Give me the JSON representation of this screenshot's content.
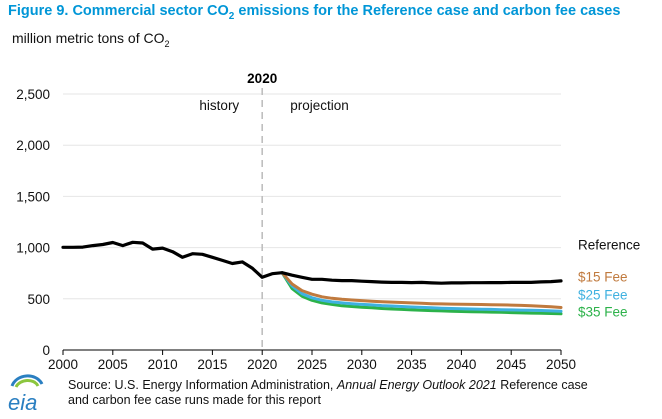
{
  "figure": {
    "title_prefix": "Figure 9. Commercial sector CO",
    "title_sub": "2",
    "title_suffix": " emissions for the Reference case and carbon fee cases",
    "y_unit_prefix": "million metric tons of CO",
    "y_unit_sub": "2"
  },
  "source": {
    "line1_prefix": "Source: U.S. Energy Information Administration, ",
    "line1_italic": "Annual Energy Outlook 2021",
    "line1_suffix": " Reference case",
    "line2": "and carbon fee case runs made for this report"
  },
  "logo": {
    "text": "eia"
  },
  "colors": {
    "reference": "#000000",
    "fee15": "#c07a3e",
    "fee25": "#3fb1e0",
    "fee35": "#2cb24a",
    "title": "#0096d7",
    "divider": "#bfbfbf"
  },
  "chart_data": {
    "type": "line",
    "xlim": [
      2000,
      2050
    ],
    "ylim": [
      0,
      2500
    ],
    "xticks": [
      2000,
      2005,
      2010,
      2015,
      2020,
      2025,
      2030,
      2035,
      2040,
      2045,
      2050
    ],
    "yticks": [
      0,
      500,
      1000,
      1500,
      2000,
      2500
    ],
    "ytick_labels": [
      "0",
      "500",
      "1,000",
      "1,500",
      "2,000",
      "2,500"
    ],
    "divider": {
      "x": 2020,
      "label": "2020",
      "left_label": "history",
      "right_label": "projection"
    },
    "series": [
      {
        "name": "Reference",
        "color_key": "reference",
        "x": [
          2000,
          2001,
          2002,
          2003,
          2004,
          2005,
          2006,
          2007,
          2008,
          2009,
          2010,
          2011,
          2012,
          2013,
          2014,
          2015,
          2016,
          2017,
          2018,
          2019,
          2020,
          2021,
          2022,
          2023,
          2024,
          2025,
          2026,
          2027,
          2028,
          2029,
          2030,
          2031,
          2032,
          2033,
          2034,
          2035,
          2036,
          2037,
          2038,
          2039,
          2040,
          2041,
          2042,
          2043,
          2044,
          2045,
          2046,
          2047,
          2048,
          2049,
          2050
        ],
        "y": [
          1003,
          1003,
          1005,
          1020,
          1030,
          1050,
          1020,
          1052,
          1045,
          985,
          995,
          960,
          905,
          940,
          935,
          905,
          875,
          845,
          860,
          800,
          710,
          745,
          755,
          730,
          710,
          690,
          690,
          682,
          678,
          678,
          672,
          668,
          663,
          660,
          660,
          658,
          660,
          655,
          652,
          655,
          655,
          657,
          657,
          658,
          658,
          660,
          660,
          660,
          665,
          668,
          675
        ]
      },
      {
        "name": "$15 Fee",
        "color_key": "fee15",
        "x": [
          2022,
          2023,
          2024,
          2025,
          2026,
          2027,
          2028,
          2029,
          2030,
          2031,
          2032,
          2033,
          2034,
          2035,
          2036,
          2037,
          2038,
          2039,
          2040,
          2041,
          2042,
          2043,
          2044,
          2045,
          2046,
          2047,
          2048,
          2049,
          2050
        ],
        "y": [
          755,
          645,
          580,
          545,
          520,
          505,
          495,
          488,
          482,
          477,
          472,
          468,
          464,
          460,
          456,
          452,
          450,
          448,
          447,
          445,
          444,
          442,
          440,
          438,
          436,
          432,
          428,
          422,
          415
        ]
      },
      {
        "name": "$25 Fee",
        "color_key": "fee25",
        "x": [
          2022,
          2023,
          2024,
          2025,
          2026,
          2027,
          2028,
          2029,
          2030,
          2031,
          2032,
          2033,
          2034,
          2035,
          2036,
          2037,
          2038,
          2039,
          2040,
          2041,
          2042,
          2043,
          2044,
          2045,
          2046,
          2047,
          2048,
          2049,
          2050
        ],
        "y": [
          755,
          625,
          550,
          510,
          485,
          470,
          460,
          452,
          445,
          440,
          434,
          430,
          425,
          420,
          416,
          412,
          408,
          405,
          403,
          400,
          398,
          396,
          394,
          392,
          390,
          388,
          386,
          382,
          378
        ]
      },
      {
        "name": "$35 Fee",
        "color_key": "fee35",
        "x": [
          2022,
          2023,
          2024,
          2025,
          2026,
          2027,
          2028,
          2029,
          2030,
          2031,
          2032,
          2033,
          2034,
          2035,
          2036,
          2037,
          2038,
          2039,
          2040,
          2041,
          2042,
          2043,
          2044,
          2045,
          2046,
          2047,
          2048,
          2049,
          2050
        ],
        "y": [
          755,
          600,
          525,
          485,
          460,
          445,
          432,
          425,
          418,
          412,
          405,
          400,
          396,
          392,
          388,
          385,
          382,
          378,
          376,
          374,
          372,
          370,
          368,
          365,
          362,
          360,
          358,
          356,
          354
        ]
      }
    ],
    "legend": [
      {
        "text": "Reference",
        "color_key": "reference",
        "y": 1030
      },
      {
        "text": "$15 Fee",
        "color_key": "fee15",
        "y": 720
      },
      {
        "text": "$25 Fee",
        "color_key": "fee25",
        "y": 540
      },
      {
        "text": "$35 Fee",
        "color_key": "fee35",
        "y": 375
      }
    ]
  }
}
